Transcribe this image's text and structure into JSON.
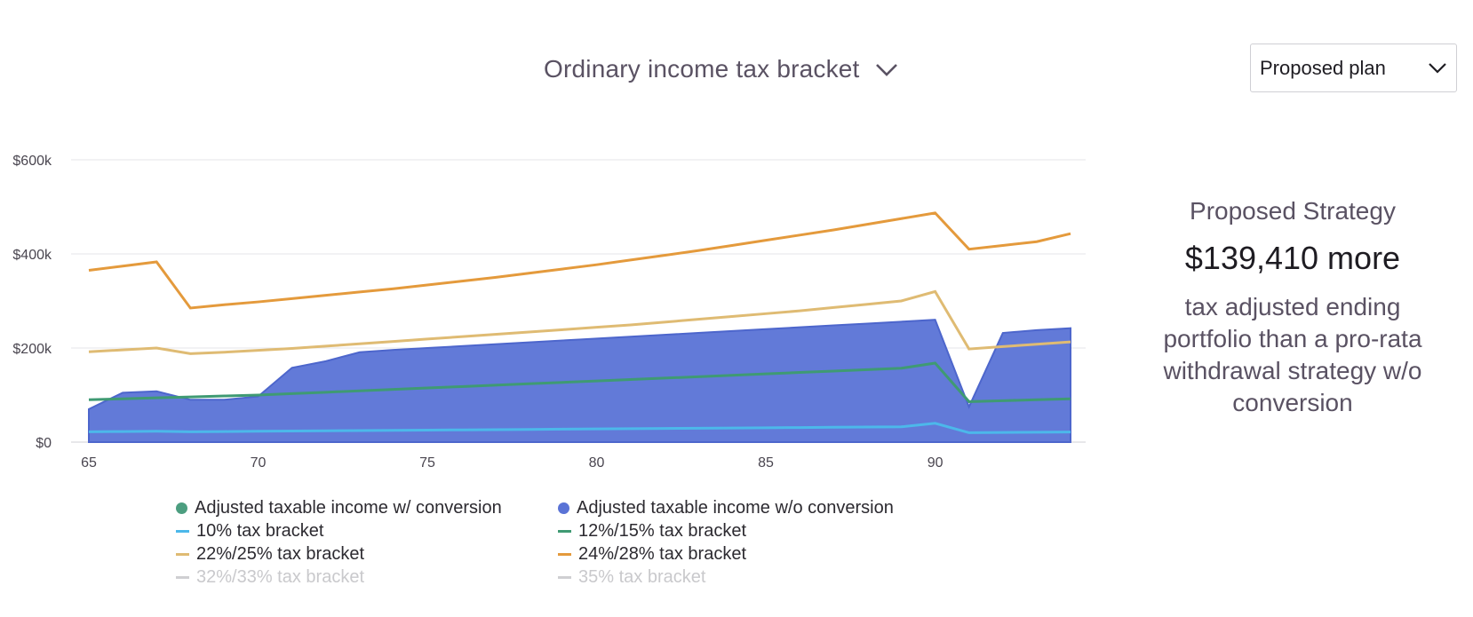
{
  "header": {
    "title": "Ordinary income tax bracket",
    "title_icon": "chevron-down-icon"
  },
  "plan_select": {
    "value": "Proposed plan",
    "icon": "chevron-down-icon"
  },
  "strategy": {
    "title": "Proposed Strategy",
    "amount": "$139,410 more",
    "description": "tax adjusted ending portfolio than a pro-rata withdrawal strategy w/o conversion"
  },
  "legend": {
    "items": [
      {
        "label": "Adjusted taxable income w/ conversion",
        "marker": "dot",
        "color": "#4c9e80",
        "dim": false
      },
      {
        "label": "Adjusted taxable income w/o conversion",
        "marker": "dot",
        "color": "#5a73d6",
        "dim": false
      },
      {
        "label": "10% tax bracket",
        "marker": "line",
        "color": "#4cb8ea",
        "dim": false
      },
      {
        "label": "12%/15% tax bracket",
        "marker": "line",
        "color": "#3f9a73",
        "dim": false
      },
      {
        "label": "22%/25% tax bracket",
        "marker": "line",
        "color": "#dfbb73",
        "dim": false
      },
      {
        "label": "24%/28% tax bracket",
        "marker": "line",
        "color": "#e49a3c",
        "dim": false
      },
      {
        "label": "32%/33% tax bracket",
        "marker": "line",
        "color": "#cfcfd2",
        "dim": true
      },
      {
        "label": "35% tax bracket",
        "marker": "line",
        "color": "#cfcfd2",
        "dim": true
      }
    ]
  },
  "chart_data": {
    "type": "area",
    "x_ticks": [
      65,
      70,
      75,
      80,
      85,
      90
    ],
    "y_tick_labels": [
      "$0",
      "$200k",
      "$400k",
      "$600k"
    ],
    "y_ticks": [
      0,
      200000,
      400000,
      600000
    ],
    "xlim": [
      65,
      94
    ],
    "ylim": [
      0,
      600000
    ],
    "grid": true,
    "legend_position": "bottom",
    "x": [
      65,
      66,
      67,
      68,
      69,
      70,
      71,
      72,
      73,
      74,
      75,
      76,
      77,
      78,
      79,
      80,
      81,
      82,
      83,
      84,
      85,
      86,
      87,
      88,
      89,
      90,
      91,
      92,
      93,
      94
    ],
    "series": [
      {
        "name": "Adjusted taxable income w/o conversion",
        "kind": "area",
        "color": "#5a73d6",
        "values": [
          70000,
          105000,
          108000,
          90000,
          90000,
          97000,
          158000,
          172000,
          191000,
          196000,
          200000,
          204000,
          208000,
          212000,
          216000,
          220000,
          224000,
          228000,
          232000,
          236000,
          240000,
          244000,
          248000,
          252000,
          256000,
          260000,
          75000,
          232000,
          238000,
          242000,
          30000
        ],
        "x": [
          65,
          66,
          67,
          68,
          69,
          70,
          71,
          72,
          73,
          74,
          75,
          76,
          77,
          78,
          79,
          80,
          81,
          82,
          83,
          84,
          85,
          86,
          87,
          88,
          89,
          90,
          91,
          92,
          93,
          94,
          94
        ]
      },
      {
        "name": "10% tax bracket",
        "kind": "line",
        "color": "#4cb8ea",
        "values": [
          22000,
          22500,
          23000,
          22000,
          22500,
          23000,
          23500,
          24000,
          24500,
          25000,
          25500,
          26000,
          26500,
          27000,
          27500,
          28000,
          28500,
          29000,
          29500,
          30000,
          30500,
          31000,
          31500,
          32000,
          32500,
          40000,
          20000,
          20500,
          21000,
          21500
        ]
      },
      {
        "name": "12%/15% tax bracket",
        "kind": "line",
        "color": "#3f9a73",
        "values": [
          90000,
          92000,
          94000,
          96000,
          98000,
          100000,
          103000,
          106000,
          109000,
          112000,
          115000,
          118000,
          121000,
          124000,
          127000,
          130000,
          133000,
          136000,
          139000,
          142000,
          145000,
          148000,
          151000,
          154000,
          157000,
          168000,
          86000,
          88000,
          90000,
          92000
        ]
      },
      {
        "name": "22%/25% tax bracket",
        "kind": "line",
        "color": "#dfbb73",
        "values": [
          192000,
          196000,
          200000,
          188000,
          191000,
          195000,
          199000,
          204000,
          209000,
          214000,
          219000,
          224000,
          229000,
          234000,
          239000,
          244000,
          249000,
          255000,
          261000,
          267000,
          273000,
          279000,
          286000,
          293000,
          300000,
          320000,
          198000,
          203000,
          208000,
          213000
        ]
      },
      {
        "name": "24%/28% tax bracket",
        "kind": "line",
        "color": "#e49a3c",
        "values": [
          365000,
          374000,
          383000,
          285000,
          292000,
          298000,
          305000,
          312000,
          319000,
          326000,
          334000,
          342000,
          350000,
          359000,
          368000,
          377000,
          387000,
          397000,
          407000,
          418000,
          429000,
          440000,
          451000,
          463000,
          475000,
          487000,
          410000,
          418000,
          426000,
          443000
        ]
      }
    ]
  }
}
